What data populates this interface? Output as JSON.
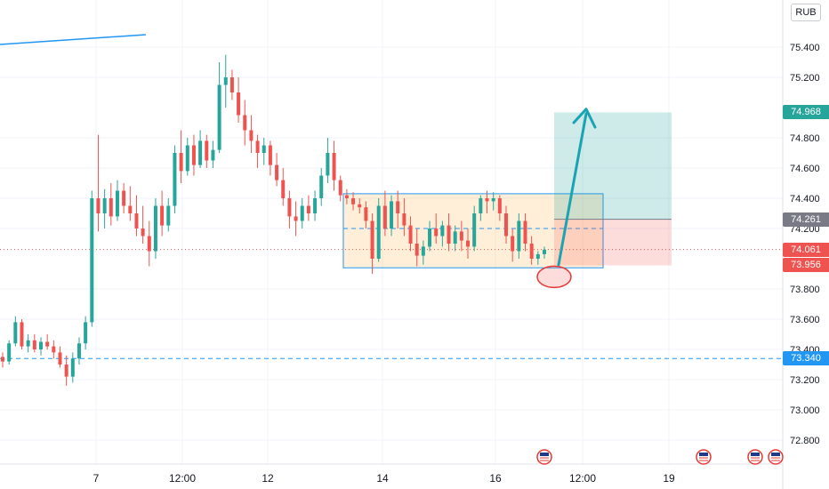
{
  "currency": "RUB",
  "chart_data": {
    "type": "candlestick",
    "symbol_currency": "RUB",
    "y_axis": {
      "ticks": [
        75.4,
        75.2,
        74.8,
        74.6,
        74.4,
        74.2,
        73.8,
        73.6,
        73.4,
        73.2,
        73.0,
        72.8
      ],
      "tick_labels": [
        "75.400",
        "75.200",
        "74.800",
        "74.600",
        "74.400",
        "74.200",
        "73.800",
        "73.600",
        "73.400",
        "73.200",
        "73.000",
        "72.800"
      ],
      "ylim": [
        72.6,
        75.7
      ]
    },
    "x_axis": {
      "tick_labels": [
        "7",
        "12:00",
        "12",
        "14",
        "16",
        "12:00",
        "19"
      ]
    },
    "price_tags": [
      {
        "label": "74.968",
        "value": 74.968,
        "color": "#26a69a"
      },
      {
        "label": "74.261",
        "value": 74.261,
        "color": "#787b86"
      },
      {
        "label": "74.061",
        "value": 74.061,
        "color": "#ef5350"
      },
      {
        "label": "73.956",
        "value": 73.956,
        "color": "#ef5350"
      },
      {
        "label": "73.340",
        "value": 73.34,
        "color": "#2196f3"
      }
    ],
    "horizontal_levels": [
      {
        "value": 73.34,
        "style": "dashed",
        "color": "#2196f3"
      },
      {
        "value": 74.061,
        "style": "dotted",
        "color": "#ef5350"
      }
    ],
    "range_box": {
      "top": 74.43,
      "bottom": 73.94,
      "mid": 74.2
    },
    "position": {
      "target": 74.968,
      "entry": 74.261,
      "stop": 73.956
    },
    "ohlc": [
      [
        73.35,
        73.38,
        73.28,
        73.32
      ],
      [
        73.32,
        73.46,
        73.3,
        73.44
      ],
      [
        73.44,
        73.62,
        73.42,
        73.58
      ],
      [
        73.58,
        73.6,
        73.4,
        73.42
      ],
      [
        73.42,
        73.5,
        73.38,
        73.46
      ],
      [
        73.46,
        73.5,
        73.38,
        73.4
      ],
      [
        73.4,
        73.48,
        73.36,
        73.45
      ],
      [
        73.45,
        73.5,
        73.4,
        73.42
      ],
      [
        73.42,
        73.46,
        73.34,
        73.38
      ],
      [
        73.38,
        73.42,
        73.28,
        73.3
      ],
      [
        73.3,
        73.36,
        73.16,
        73.22
      ],
      [
        73.22,
        73.38,
        73.18,
        73.34
      ],
      [
        73.34,
        73.48,
        73.3,
        73.44
      ],
      [
        73.44,
        73.62,
        73.4,
        73.58
      ],
      [
        73.58,
        74.45,
        73.55,
        74.4
      ],
      [
        74.4,
        74.82,
        74.18,
        74.3
      ],
      [
        74.3,
        74.46,
        74.2,
        74.4
      ],
      [
        74.4,
        74.5,
        74.22,
        74.28
      ],
      [
        74.28,
        74.52,
        74.25,
        74.45
      ],
      [
        74.45,
        74.5,
        74.3,
        74.35
      ],
      [
        74.35,
        74.48,
        74.25,
        74.3
      ],
      [
        74.3,
        74.42,
        74.15,
        74.2
      ],
      [
        74.2,
        74.35,
        74.1,
        74.15
      ],
      [
        74.15,
        74.25,
        73.95,
        74.05
      ],
      [
        74.05,
        74.4,
        74.0,
        74.35
      ],
      [
        74.35,
        74.45,
        74.15,
        74.22
      ],
      [
        74.22,
        74.4,
        74.18,
        74.35
      ],
      [
        74.35,
        74.75,
        74.3,
        74.7
      ],
      [
        74.7,
        74.85,
        74.5,
        74.58
      ],
      [
        74.58,
        74.8,
        74.55,
        74.75
      ],
      [
        74.75,
        74.82,
        74.55,
        74.62
      ],
      [
        74.62,
        74.85,
        74.6,
        74.78
      ],
      [
        74.78,
        74.82,
        74.6,
        74.65
      ],
      [
        74.65,
        74.78,
        74.6,
        74.72
      ],
      [
        74.72,
        75.3,
        74.7,
        75.15
      ],
      [
        75.15,
        75.35,
        75.0,
        75.2
      ],
      [
        75.2,
        75.25,
        75.05,
        75.1
      ],
      [
        75.1,
        75.2,
        74.9,
        74.95
      ],
      [
        74.95,
        75.05,
        74.75,
        74.85
      ],
      [
        74.85,
        74.95,
        74.7,
        74.78
      ],
      [
        74.78,
        74.82,
        74.6,
        74.7
      ],
      [
        74.7,
        74.8,
        74.62,
        74.75
      ],
      [
        74.75,
        74.78,
        74.55,
        74.62
      ],
      [
        74.62,
        74.7,
        74.48,
        74.52
      ],
      [
        74.52,
        74.6,
        74.35,
        74.4
      ],
      [
        74.4,
        74.45,
        74.2,
        74.28
      ],
      [
        74.28,
        74.38,
        74.15,
        74.25
      ],
      [
        74.25,
        74.4,
        74.2,
        74.35
      ],
      [
        74.35,
        74.42,
        74.25,
        74.3
      ],
      [
        74.3,
        74.45,
        74.25,
        74.4
      ],
      [
        74.4,
        74.6,
        74.35,
        74.55
      ],
      [
        74.55,
        74.8,
        74.5,
        74.7
      ],
      [
        74.7,
        74.78,
        74.45,
        74.52
      ],
      [
        74.52,
        74.55,
        74.38,
        74.42
      ],
      [
        74.42,
        74.46,
        74.36,
        74.4
      ],
      [
        74.4,
        74.44,
        74.32,
        74.36
      ],
      [
        74.36,
        74.4,
        74.3,
        74.34
      ],
      [
        74.34,
        74.38,
        74.2,
        74.25
      ],
      [
        74.25,
        74.3,
        73.9,
        74.0
      ],
      [
        74.0,
        74.4,
        73.98,
        74.35
      ],
      [
        74.35,
        74.45,
        74.15,
        74.2
      ],
      [
        74.2,
        74.42,
        74.15,
        74.38
      ],
      [
        74.38,
        74.45,
        74.2,
        74.3
      ],
      [
        74.3,
        74.4,
        74.15,
        74.22
      ],
      [
        74.22,
        74.28,
        74.05,
        74.1
      ],
      [
        74.1,
        74.2,
        73.95,
        74.02
      ],
      [
        74.02,
        74.12,
        73.96,
        74.08
      ],
      [
        74.08,
        74.25,
        74.05,
        74.2
      ],
      [
        74.2,
        74.3,
        74.1,
        74.15
      ],
      [
        74.15,
        74.25,
        74.08,
        74.22
      ],
      [
        74.22,
        74.3,
        74.05,
        74.1
      ],
      [
        74.1,
        74.22,
        74.05,
        74.18
      ],
      [
        74.18,
        74.25,
        74.05,
        74.12
      ],
      [
        74.12,
        74.2,
        74.0,
        74.08
      ],
      [
        74.08,
        74.35,
        74.05,
        74.3
      ],
      [
        74.3,
        74.42,
        74.25,
        74.4
      ],
      [
        74.4,
        74.45,
        74.3,
        74.38
      ],
      [
        74.38,
        74.44,
        74.32,
        74.4
      ],
      [
        74.4,
        74.42,
        74.25,
        74.3
      ],
      [
        74.3,
        74.35,
        74.1,
        74.15
      ],
      [
        74.15,
        74.2,
        73.98,
        74.05
      ],
      [
        74.05,
        74.3,
        74.0,
        74.25
      ],
      [
        74.25,
        74.3,
        74.05,
        74.1
      ],
      [
        74.1,
        74.15,
        73.96,
        74.0
      ],
      [
        74.0,
        74.05,
        73.96,
        74.03
      ],
      [
        74.03,
        74.08,
        74.0,
        74.06
      ]
    ]
  }
}
